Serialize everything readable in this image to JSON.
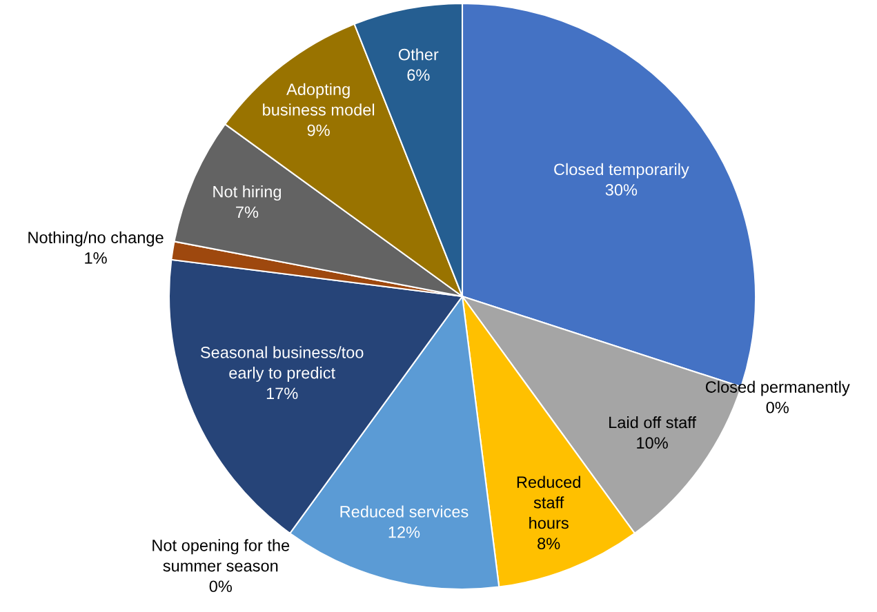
{
  "chart_data": {
    "type": "pie",
    "categories": [
      "Closed temporarily",
      "Closed permanently",
      "Laid off staff",
      "Reduced\nstaff\nhours",
      "Reduced services",
      "Not opening for the\nsummer season",
      "Seasonal business/too\nearly to predict",
      "Nothing/no change",
      "Not hiring",
      "Adopting\nbusiness model",
      "Other"
    ],
    "values": [
      30,
      0,
      10,
      8,
      12,
      0,
      17,
      1,
      7,
      9,
      6
    ],
    "colors": [
      "#4472c4",
      "#ed7d31",
      "#a5a5a5",
      "#ffc000",
      "#5b9bd5",
      "#70ad47",
      "#264478",
      "#9e480e",
      "#636363",
      "#997300",
      "#255e91"
    ],
    "value_labels": [
      "30%",
      "0%",
      "10%",
      "8%",
      "12%",
      "0%",
      "17%",
      "1%",
      "7%",
      "9%",
      "6%"
    ]
  }
}
